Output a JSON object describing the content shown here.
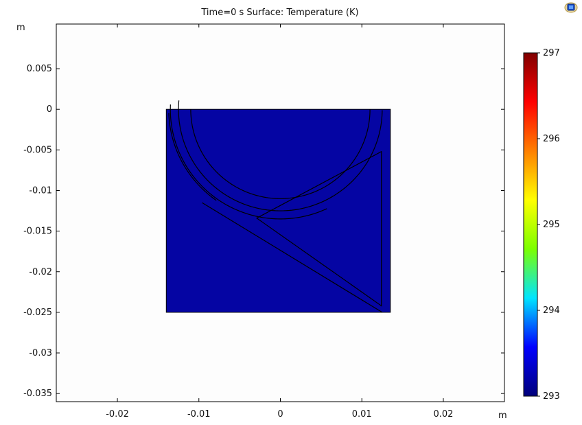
{
  "plot": {
    "title": "Time=0 s   Surface: Temperature (K)",
    "x_unit": "m",
    "y_unit": "m"
  },
  "colorbar": {
    "ticks": [
      "293",
      "294",
      "295",
      "296",
      "297"
    ],
    "min": 293,
    "max": 297,
    "colormap": "rainbow",
    "colors": [
      "#00007a",
      "#0000ff",
      "#00e5ff",
      "#7cff00",
      "#ffff00",
      "#ff8000",
      "#ff0000",
      "#800000"
    ]
  },
  "icons": {
    "logo": "app-logo-icon"
  },
  "chart_data": {
    "type": "heatmap",
    "title": "Time=0 s   Surface: Temperature (K)",
    "xlabel": "m",
    "ylabel": "m",
    "xlim": [
      -0.0275,
      0.0275
    ],
    "ylim": [
      -0.036,
      0.0105
    ],
    "x_ticks": [
      -0.02,
      -0.01,
      0,
      0.01,
      0.02
    ],
    "x_tick_labels": [
      "-0.02",
      "-0.01",
      "0",
      "0.01",
      "0.02"
    ],
    "y_ticks": [
      0.005,
      0,
      -0.005,
      -0.01,
      -0.015,
      -0.02,
      -0.025,
      -0.03,
      -0.035
    ],
    "y_tick_labels": [
      "0.005",
      "0",
      "-0.005",
      "-0.01",
      "-0.015",
      "-0.02",
      "-0.025",
      "-0.03",
      "-0.035"
    ],
    "grid": false,
    "domain_rect": {
      "x": [
        -0.014,
        0.0135
      ],
      "y": [
        -0.025,
        0
      ]
    },
    "surface_value_K": 293,
    "surface_color": "#0505a3",
    "inner_circle": {
      "cx": 0,
      "cy": 0,
      "r": 0.011
    },
    "arc1": {
      "r": 0.0125,
      "start_angle_deg": 175,
      "end_angle_deg": 359.5
    },
    "arc2": {
      "r": 0.0135,
      "start_angle_deg": 177.5,
      "end_angle_deg": 295
    },
    "outer_arc": {
      "r": 0.0137,
      "start_angle_deg": 182,
      "end_angle_deg": 235
    },
    "diagonal_outer": [
      [
        -0.0096,
        -0.0115
      ],
      [
        0.0125,
        -0.025
      ]
    ],
    "triangle": [
      [
        -0.0029,
        -0.0134
      ],
      [
        0.0124,
        -0.0052
      ],
      [
        0.0124,
        -0.0242
      ]
    ],
    "colorbar_range": [
      293,
      297
    ],
    "colorbar_ticks": [
      293,
      294,
      295,
      296,
      297
    ]
  }
}
